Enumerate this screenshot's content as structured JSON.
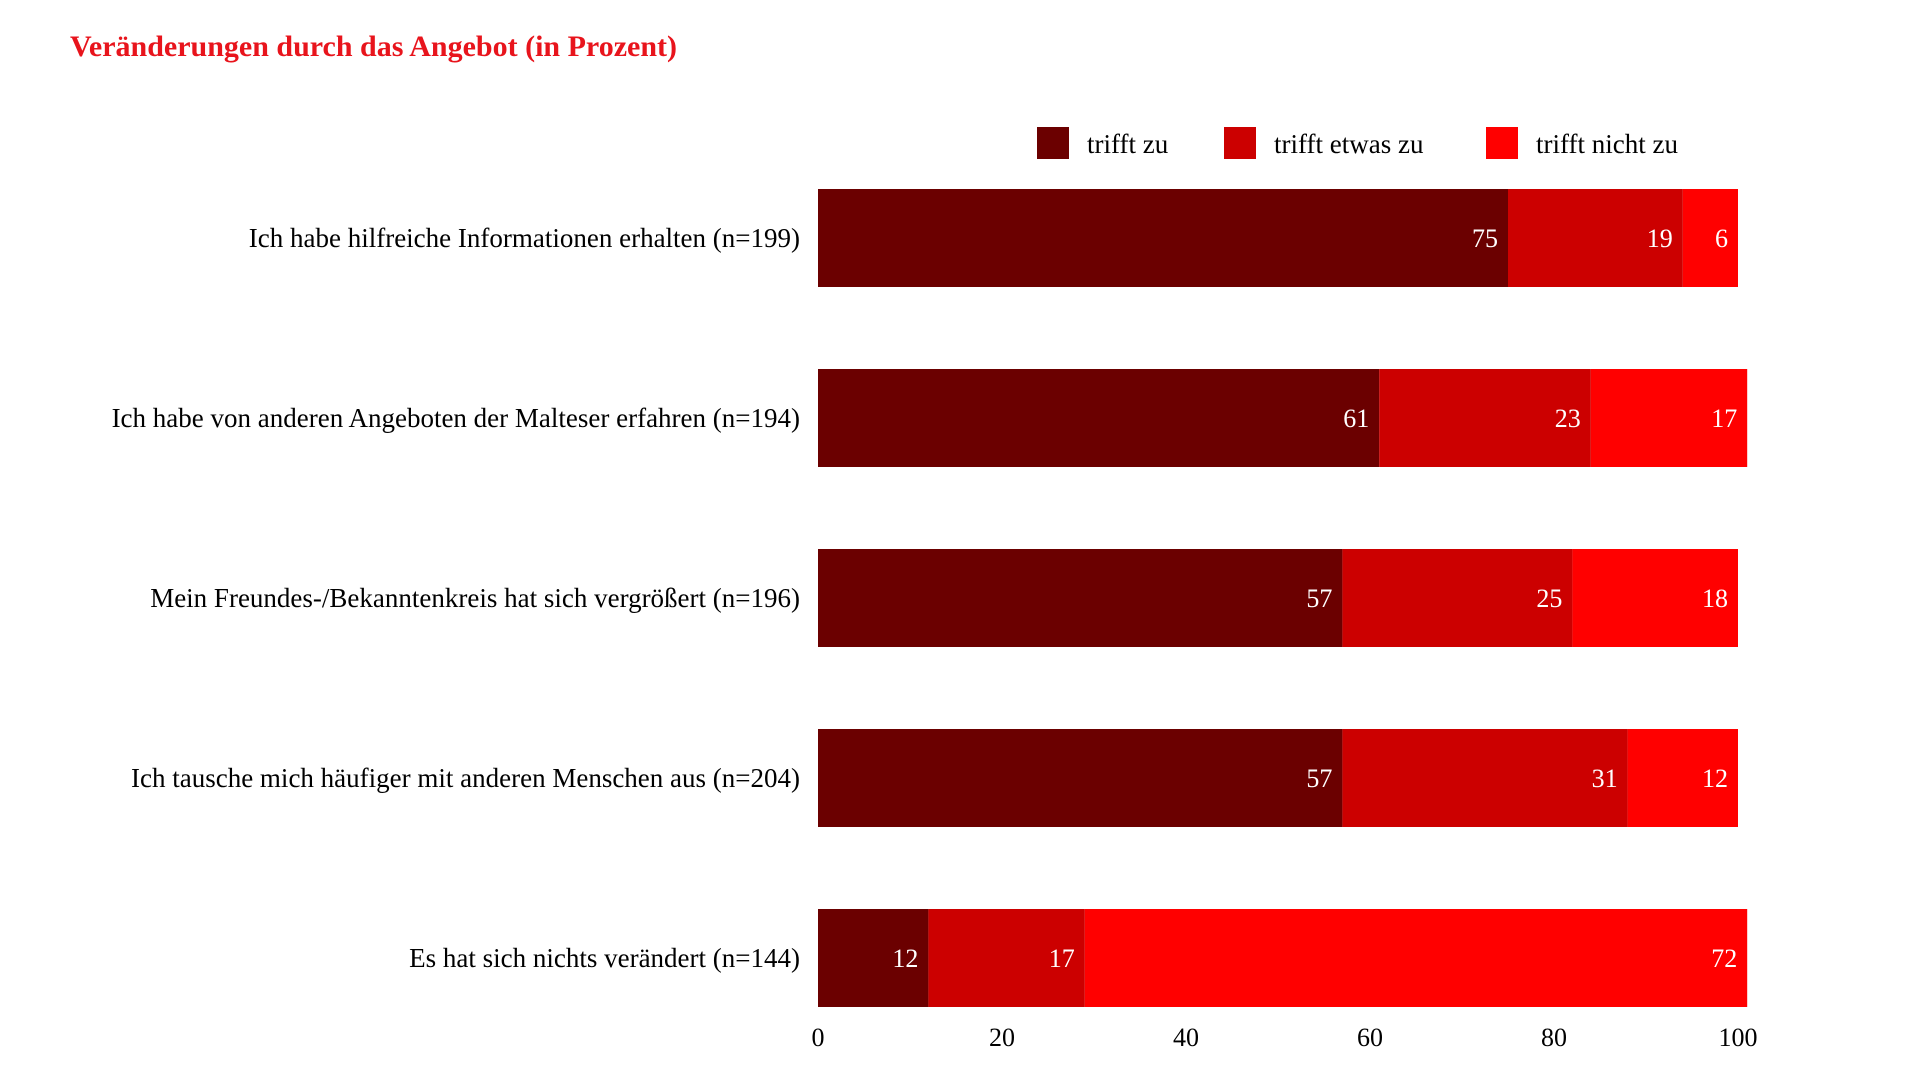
{
  "colors": {
    "title": "#e8141c",
    "series": [
      "#6b0000",
      "#cc0000",
      "#ff0000"
    ]
  },
  "chart_data": {
    "type": "bar",
    "orientation": "horizontal",
    "stacked": true,
    "title": "Veränderungen durch das Angebot (in Prozent)",
    "categories": [
      "Ich habe hilfreiche Informationen erhalten (n=199)",
      "Ich habe von anderen Angeboten der Malteser erfahren (n=194)",
      "Mein Freundes-/Bekanntenkreis hat sich vergrößert (n=196)",
      "Ich tausche mich häufiger mit anderen Menschen aus (n=204)",
      "Es hat sich nichts verändert (n=144)"
    ],
    "series": [
      {
        "name": "trifft zu",
        "values": [
          75,
          61,
          57,
          57,
          12
        ]
      },
      {
        "name": "trifft etwas zu",
        "values": [
          19,
          23,
          25,
          31,
          17
        ]
      },
      {
        "name": "trifft nicht zu",
        "values": [
          6,
          17,
          18,
          12,
          72
        ]
      }
    ],
    "xlim": [
      0,
      100
    ],
    "xticks": [
      0,
      20,
      40,
      60,
      80,
      100
    ],
    "grid": false,
    "legend": "top"
  }
}
